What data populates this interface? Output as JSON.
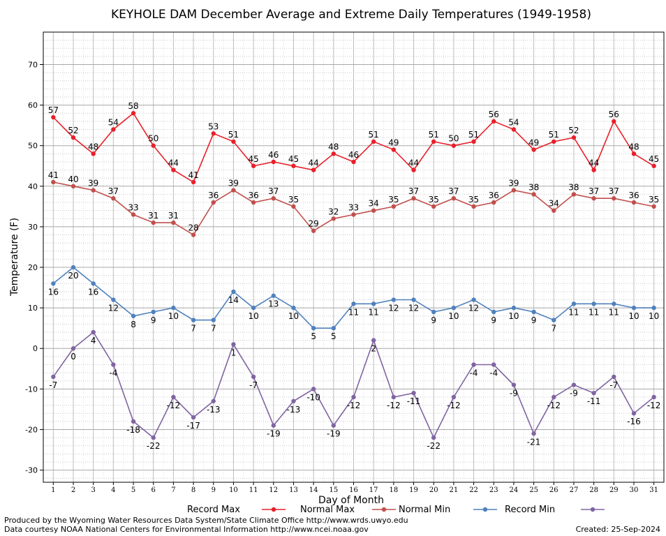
{
  "chart_data": {
    "type": "line",
    "title": "KEYHOLE DAM December Average and Extreme Daily Temperatures (1949-1958)",
    "xlabel": "Day of Month",
    "ylabel": "Temperature (F)",
    "x": [
      1,
      2,
      3,
      4,
      5,
      6,
      7,
      8,
      9,
      10,
      11,
      12,
      13,
      14,
      15,
      16,
      17,
      18,
      19,
      20,
      21,
      22,
      23,
      24,
      25,
      26,
      27,
      28,
      29,
      30,
      31
    ],
    "xlim": [
      0.5,
      31.5
    ],
    "ylim": [
      -33,
      78
    ],
    "yticks": [
      -30,
      -20,
      -10,
      0,
      10,
      20,
      30,
      40,
      50,
      60,
      70
    ],
    "grid": true,
    "legend_position": "bottom",
    "series": [
      {
        "name": "Record Max",
        "color": "#e8202a",
        "values": [
          57,
          52,
          48,
          54,
          58,
          50,
          44,
          41,
          53,
          51,
          45,
          46,
          45,
          44,
          48,
          46,
          51,
          49,
          44,
          51,
          50,
          51,
          56,
          54,
          49,
          51,
          52,
          44,
          56,
          48,
          45
        ]
      },
      {
        "name": "Normal Max",
        "color": "#c0504d",
        "values": [
          41,
          40,
          39,
          37,
          33,
          31,
          31,
          28,
          36,
          39,
          36,
          37,
          35,
          29,
          32,
          33,
          34,
          35,
          37,
          35,
          37,
          35,
          36,
          39,
          38,
          34,
          38,
          37,
          37,
          36,
          35
        ]
      },
      {
        "name": "Normal Min",
        "color": "#4f81bd",
        "values": [
          16,
          20,
          16,
          12,
          8,
          9,
          10,
          7,
          7,
          14,
          10,
          13,
          10,
          5,
          5,
          11,
          11,
          12,
          12,
          9,
          10,
          12,
          9,
          10,
          9,
          7,
          11,
          11,
          11,
          10,
          10
        ]
      },
      {
        "name": "Record Min",
        "color": "#8064a2",
        "values": [
          -7,
          0,
          4,
          -4,
          -18,
          -22,
          -12,
          -17,
          -13,
          1,
          -7,
          -19,
          -13,
          -10,
          -19,
          -12,
          2,
          -12,
          -11,
          -22,
          -12,
          -4,
          -4,
          -9,
          -21,
          -12,
          -9,
          -11,
          -7,
          -16,
          -12
        ]
      }
    ]
  },
  "footer": {
    "line1": "Produced by the Wyoming Water Resources Data System/State Climate Office http://www.wrds.uwyo.edu",
    "line2": "Data courtesy NOAA National Centers for Environmental Information http://www.ncei.noaa.gov",
    "created": "Created:  25-Sep-2024"
  }
}
